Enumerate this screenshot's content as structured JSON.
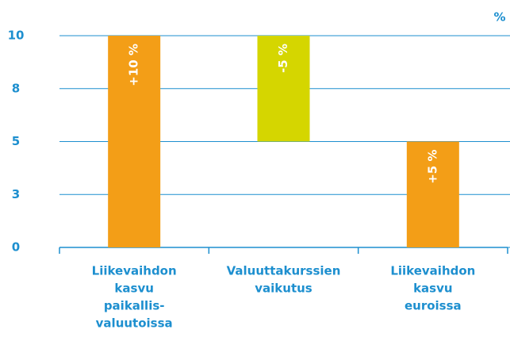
{
  "chart_data": {
    "type": "waterfall",
    "unit": "%",
    "categories": [
      [
        "Liikevaihdon",
        "kasvu",
        "paikallis-",
        "valuutoissa"
      ],
      [
        "Valuuttakurssien",
        "vaikutus"
      ],
      [
        "Liikevaihdon",
        "kasvu",
        "euroissa"
      ]
    ],
    "values": [
      10,
      -5,
      5
    ],
    "value_labels": [
      "+10 %",
      "-5 %",
      "+5 %"
    ],
    "is_total": [
      false,
      false,
      true
    ],
    "colors": [
      "#f39e17",
      "#d5d600",
      "#f39e17"
    ],
    "ylim": [
      0,
      10
    ],
    "yticks": [
      0,
      {
        "value": 2.5,
        "label": "3"
      },
      5,
      {
        "value": 7.5,
        "label": "8"
      },
      10
    ],
    "grid": true,
    "grid_color": "#1d8fcf"
  }
}
